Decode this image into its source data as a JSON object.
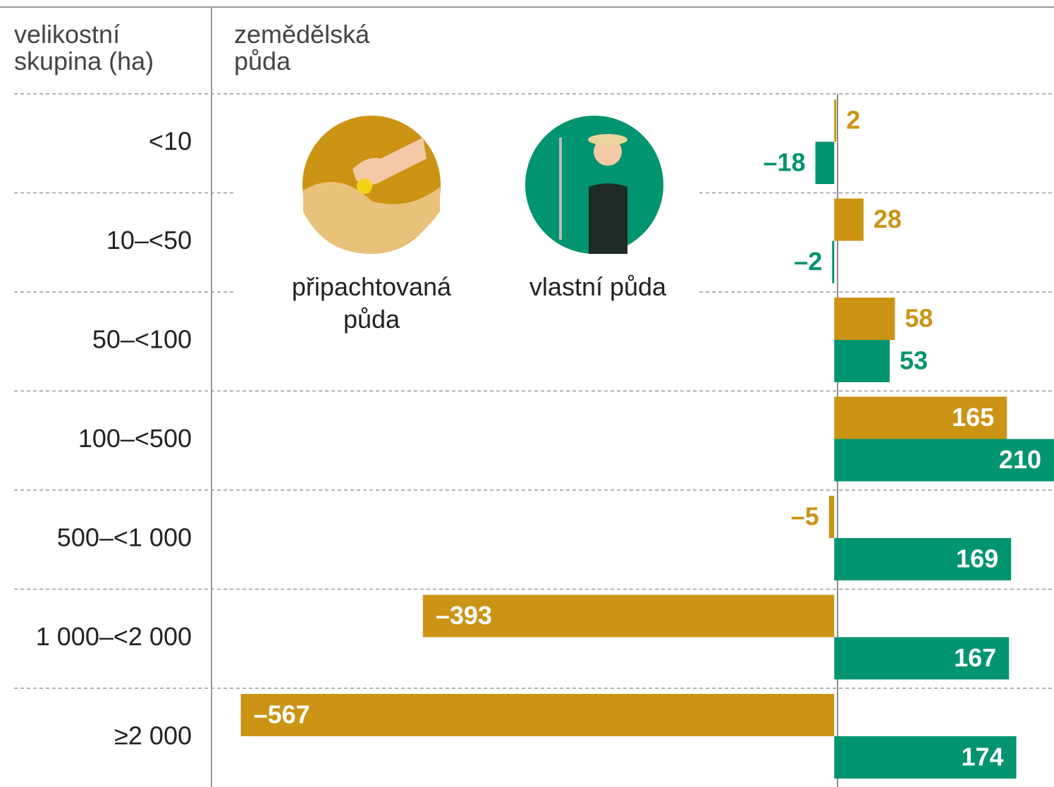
{
  "chart_data": {
    "type": "bar",
    "orientation": "horizontal",
    "category_header": "velikostní skupina (ha)",
    "value_header": "zemědělská půda",
    "categories": [
      "<10",
      "10–<50",
      "50–<100",
      "100–<500",
      "500–<1 000",
      "1 000–<2 000",
      "≥2 000"
    ],
    "series": [
      {
        "name": "připachtovaná půda",
        "color": "#cc9414",
        "values": [
          2,
          28,
          58,
          165,
          -5,
          -393,
          -567
        ],
        "value_labels": [
          "2",
          "28",
          "58",
          "165",
          "–5",
          "–393",
          "–567"
        ]
      },
      {
        "name": "vlastní půda",
        "color": "#009470",
        "values": [
          -18,
          -2,
          53,
          210,
          169,
          167,
          174
        ],
        "value_labels": [
          "–18",
          "–2",
          "53",
          "210",
          "169",
          "167",
          "174"
        ]
      }
    ],
    "xlim": [
      -595,
      210
    ]
  }
}
